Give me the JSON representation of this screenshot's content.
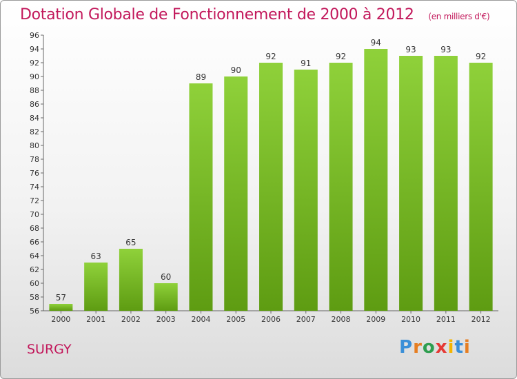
{
  "header": {
    "title": "Dotation Globale de Fonctionnement de 2000 à 2012",
    "unit": "(en milliers d'€)"
  },
  "footer": {
    "commune": "SURGY",
    "logo_text": "Proxiti",
    "logo_colors": [
      "#3a8fd8",
      "#e67e22",
      "#2e9e4f",
      "#e53935",
      "#f4b400",
      "#3a8fd8",
      "#e67e22"
    ]
  },
  "chart_data": {
    "type": "bar",
    "categories": [
      "2000",
      "2001",
      "2002",
      "2003",
      "2004",
      "2005",
      "2006",
      "2007",
      "2008",
      "2009",
      "2010",
      "2011",
      "2012"
    ],
    "values": [
      57,
      63,
      65,
      60,
      89,
      90,
      92,
      91,
      92,
      94,
      93,
      93,
      92
    ],
    "ylim": [
      56,
      96
    ],
    "ytick_step": 2,
    "grid": false,
    "bar_color": "#7fbf2a",
    "bar_color_dark": "#5e9c12"
  }
}
